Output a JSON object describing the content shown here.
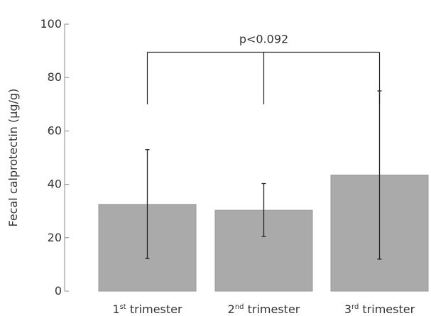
{
  "chart_data": {
    "type": "bar",
    "title": "",
    "xlabel": "",
    "ylabel": "Fecal calprotectin (µg/g)",
    "ylim": [
      0,
      100
    ],
    "yticks": [
      "0",
      "20",
      "40",
      "60",
      "80",
      "100"
    ],
    "categories": [
      {
        "base": "1",
        "sup": "st",
        "rest": " trimester"
      },
      {
        "base": "2",
        "sup": "nd",
        "rest": " trimester"
      },
      {
        "base": "3",
        "sup": "rd",
        "rest": " trimester"
      }
    ],
    "values": [
      32.5,
      30.3,
      43.5
    ],
    "error_low": [
      12.2,
      20.5,
      12.0
    ],
    "error_high": [
      53.0,
      40.3,
      75.0
    ],
    "bar_color": "#aaaaaa",
    "annotation": {
      "text": "p<0.092",
      "bracket_top": 89.5,
      "bracket_end": 70
    }
  }
}
